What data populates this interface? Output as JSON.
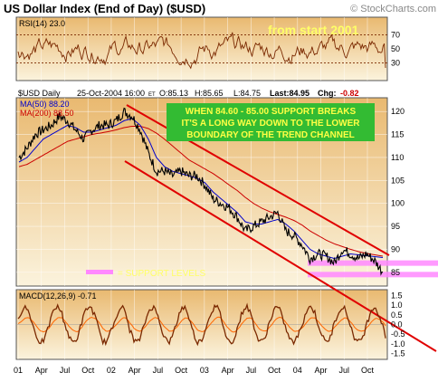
{
  "header": {
    "title": "US Dollar Index (End of Day) ($USD)",
    "watermark": "© StockCharts.com"
  },
  "rsi_panel": {
    "label": "RSI(14) 23.0",
    "note": "from start 2001",
    "note_color": "#ffff66",
    "ticks": [
      70,
      50,
      30
    ],
    "tick_labels": [
      "70",
      "50",
      "30"
    ],
    "guide_levels": [
      70,
      30
    ],
    "current_value": 23.0
  },
  "price_panel": {
    "label": "$USD Daily",
    "date": "25-Oct-2004 16:00",
    "date_tag": "ET",
    "open_label": "O:85.13",
    "high_label": "H:85.65",
    "low_label": "L:84.75",
    "last_label": "Last:84.95",
    "chg_prefix": "Chg:",
    "chg_value": "-0.82",
    "ma50_label": "MA(50) 88.20",
    "ma200_label": "MA(200) 88.50",
    "annotation_lines": [
      "WHEN 84.60 - 85.00 SUPPORT BREAKS",
      "IT'S A LONG WAY DOWN TO THE LOWER",
      "BOUNDARY OF THE TREND CHANNEL"
    ],
    "support_label": "= SUPPORT LEVELS",
    "support_levels": [
      87.0,
      84.5
    ],
    "ticks": [
      120,
      115,
      110,
      105,
      100,
      95,
      90,
      85
    ],
    "tick_labels": [
      "120",
      "115",
      "110",
      "105",
      "100",
      "95",
      "90",
      "85"
    ]
  },
  "macd_panel": {
    "label": "MACD(12,26,9) -0.71",
    "ticks": [
      1.5,
      1.0,
      0.5,
      0.0,
      -0.5,
      -1.0,
      -1.5
    ],
    "tick_labels": [
      "1.5",
      "1.0",
      "0.5",
      "0.0",
      "-0.5",
      "-1.0",
      "-1.5"
    ]
  },
  "x_axis": {
    "labels": [
      "01",
      "Apr",
      "Jul",
      "Oct",
      "02",
      "Apr",
      "Jul",
      "Oct",
      "03",
      "Apr",
      "Jul",
      "Oct",
      "04",
      "Apr",
      "Jul",
      "Oct"
    ]
  },
  "colors": {
    "panel_bg_top": "#e9b970",
    "panel_bg_bottom": "#fbf3dd",
    "price_line": "#000000",
    "ma50": "#0000cc",
    "ma200": "#cc0000",
    "trend_channel": "#e00000",
    "support_band": "#ff88ff",
    "annotation_box": "#33bb33",
    "annotation_text": "#ffff44",
    "rsi_line": "#7a2800",
    "macd_line": "#7a2800",
    "macd_signal": "#ff6600",
    "chg_negative": "#cc0000"
  },
  "chart_data": {
    "type": "line",
    "x": [
      "Jan 01",
      "Feb 01",
      "Mar 01",
      "Apr 01",
      "May 01",
      "Jun 01",
      "Jul 01",
      "Aug 01",
      "Sep 01",
      "Oct 01",
      "Nov 01",
      "Dec 01",
      "Jan 02",
      "Feb 02",
      "Mar 02",
      "Apr 02",
      "May 02",
      "Jun 02",
      "Jul 02",
      "Aug 02",
      "Sep 02",
      "Oct 02",
      "Nov 02",
      "Dec 02",
      "Jan 03",
      "Feb 03",
      "Mar 03",
      "Apr 03",
      "May 03",
      "Jun 03",
      "Jul 03",
      "Aug 03",
      "Sep 03",
      "Oct 03",
      "Nov 03",
      "Dec 03",
      "Jan 04",
      "Feb 04",
      "Mar 04",
      "Apr 04",
      "May 04",
      "Jun 04",
      "Jul 04",
      "Aug 04",
      "Sep 04",
      "Oct 04"
    ],
    "series": [
      {
        "name": "$USD Daily",
        "values": [
          110,
          112,
          115,
          116,
          117,
          119,
          118,
          116,
          114,
          116,
          117,
          117,
          118,
          120,
          119,
          116,
          111,
          107,
          107,
          106,
          107,
          106,
          106,
          104,
          101,
          100,
          99,
          97,
          94,
          95,
          96,
          97,
          98,
          94,
          93,
          91,
          88,
          89,
          88.5,
          87,
          90,
          89,
          88,
          89,
          87.5,
          85
        ]
      },
      {
        "name": "MA(50) 88.20",
        "values": [
          109,
          110,
          112,
          114,
          115,
          116,
          117,
          116.5,
          115.5,
          115.5,
          116,
          116.5,
          117,
          118,
          118.5,
          117,
          114,
          110,
          108,
          107,
          106.5,
          106,
          105.5,
          104.5,
          102.5,
          101,
          99.5,
          98,
          96,
          95.5,
          95.5,
          96,
          96.5,
          95.5,
          94,
          92,
          90,
          89,
          88.5,
          88,
          88.5,
          89,
          88.8,
          88.6,
          88.4,
          88.2
        ]
      },
      {
        "name": "MA(200) 88.50",
        "values": [
          108,
          108.5,
          109.5,
          110.5,
          111.5,
          112.5,
          113.5,
          114,
          114.5,
          115,
          115.3,
          115.6,
          116,
          116.5,
          116.8,
          116.8,
          116.3,
          115.3,
          114,
          112.5,
          111,
          109.5,
          108.5,
          107.5,
          106.5,
          105.3,
          104,
          102.8,
          101.3,
          100,
          99,
          98.2,
          97.6,
          97,
          96.3,
          95.3,
          94,
          93,
          92,
          91.2,
          90.6,
          90,
          89.5,
          89.1,
          88.8,
          88.5
        ]
      }
    ],
    "ylim": [
      82,
      123
    ]
  }
}
